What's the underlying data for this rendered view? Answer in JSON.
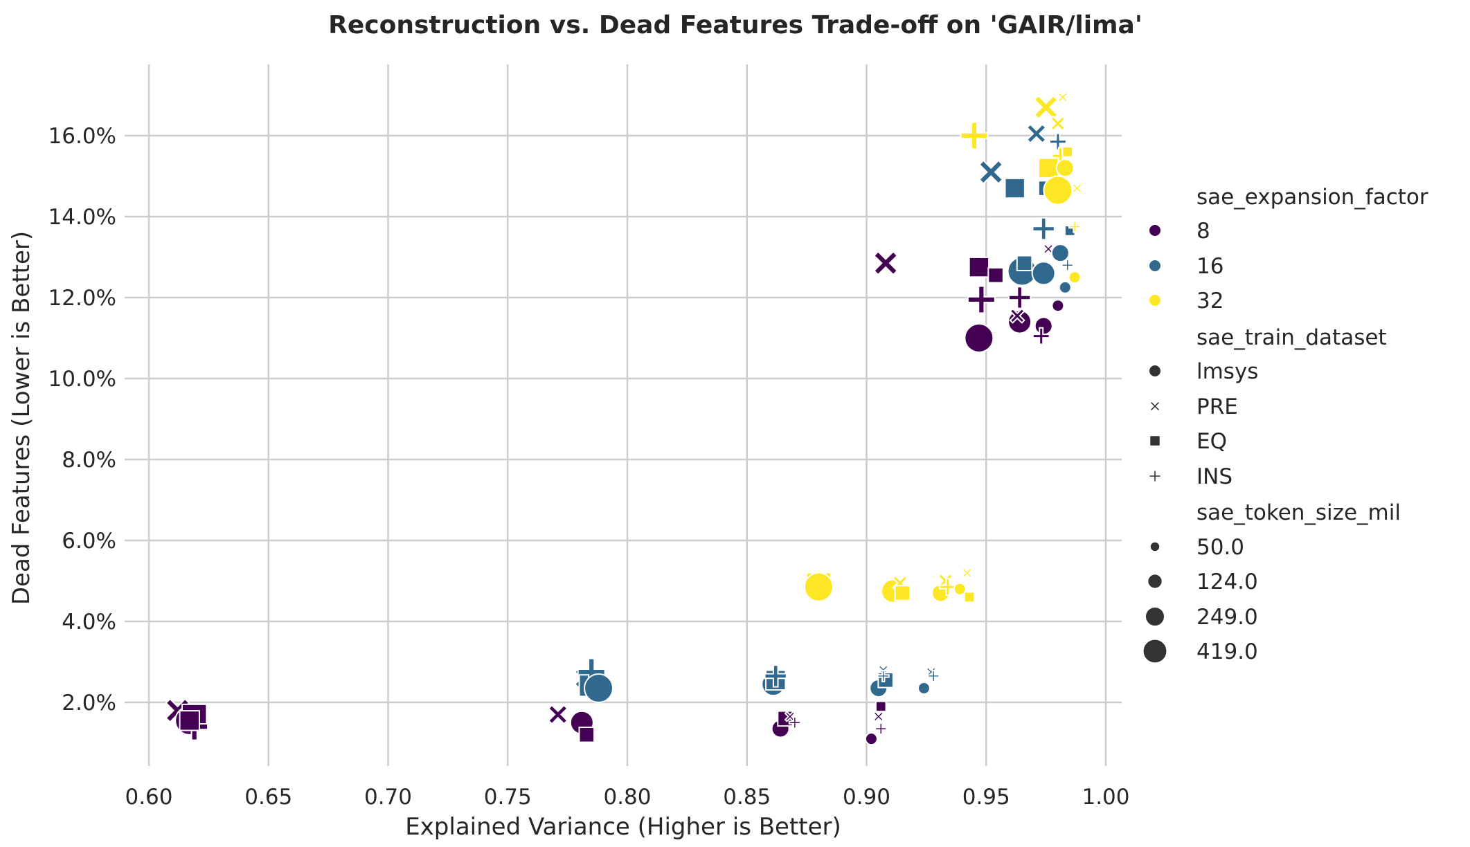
{
  "chart_data": {
    "type": "scatter",
    "title": "Reconstruction vs. Dead Features Trade-off on 'GAIR/lima'",
    "xlabel": "Explained Variance (Higher is Better)",
    "ylabel": "Dead Features (Lower is Better)",
    "xlim": [
      0.6,
      1.0
    ],
    "ylim": [
      0.8,
      17.8
    ],
    "x_ticks": [
      "0.60",
      "0.65",
      "0.70",
      "0.75",
      "0.80",
      "0.85",
      "0.90",
      "0.95",
      "1.00"
    ],
    "y_ticks": [
      "2.0%",
      "4.0%",
      "6.0%",
      "8.0%",
      "10.0%",
      "12.0%",
      "14.0%",
      "16.0%"
    ],
    "grid": true,
    "legend_placement": "right",
    "colors": {
      "8": "#440154",
      "16": "#31688e",
      "32": "#fde725"
    },
    "legend": {
      "hue_title": "sae_expansion_factor",
      "hue_entries": [
        "8",
        "16",
        "32"
      ],
      "style_title": "sae_train_dataset",
      "style_entries": [
        "lmsys",
        "PRE",
        "EQ",
        "INS"
      ],
      "size_title": "sae_token_size_mil",
      "size_entries": [
        "50.0",
        "124.0",
        "249.0",
        "419.0"
      ]
    },
    "points": [
      {
        "x": 0.612,
        "y": 1.8,
        "ef": "8",
        "ds": "PRE",
        "ts": "419.0"
      },
      {
        "x": 0.617,
        "y": 1.55,
        "ef": "8",
        "ds": "lmsys",
        "ts": "419.0"
      },
      {
        "x": 0.619,
        "y": 1.65,
        "ef": "8",
        "ds": "EQ",
        "ts": "419.0"
      },
      {
        "x": 0.619,
        "y": 1.4,
        "ef": "8",
        "ds": "INS",
        "ts": "419.0"
      },
      {
        "x": 0.771,
        "y": 1.7,
        "ef": "8",
        "ds": "PRE",
        "ts": "249.0"
      },
      {
        "x": 0.781,
        "y": 1.5,
        "ef": "8",
        "ds": "lmsys",
        "ts": "249.0"
      },
      {
        "x": 0.783,
        "y": 1.2,
        "ef": "8",
        "ds": "EQ",
        "ts": "124.0"
      },
      {
        "x": 0.864,
        "y": 1.35,
        "ef": "8",
        "ds": "lmsys",
        "ts": "124.0"
      },
      {
        "x": 0.866,
        "y": 1.6,
        "ef": "8",
        "ds": "EQ",
        "ts": "124.0"
      },
      {
        "x": 0.868,
        "y": 1.65,
        "ef": "8",
        "ds": "PRE",
        "ts": "50.0"
      },
      {
        "x": 0.87,
        "y": 1.5,
        "ef": "8",
        "ds": "INS",
        "ts": "50.0"
      },
      {
        "x": 0.902,
        "y": 1.1,
        "ef": "8",
        "ds": "lmsys",
        "ts": "50.0"
      },
      {
        "x": 0.905,
        "y": 1.65,
        "ef": "8",
        "ds": "PRE",
        "ts": "50.0"
      },
      {
        "x": 0.906,
        "y": 1.9,
        "ef": "8",
        "ds": "EQ",
        "ts": "50.0"
      },
      {
        "x": 0.906,
        "y": 1.35,
        "ef": "8",
        "ds": "INS",
        "ts": "50.0"
      },
      {
        "x": 0.947,
        "y": 11.0,
        "ef": "8",
        "ds": "lmsys",
        "ts": "419.0"
      },
      {
        "x": 0.908,
        "y": 12.85,
        "ef": "8",
        "ds": "PRE",
        "ts": "419.0"
      },
      {
        "x": 0.947,
        "y": 12.75,
        "ef": "8",
        "ds": "EQ",
        "ts": "249.0"
      },
      {
        "x": 0.954,
        "y": 12.55,
        "ef": "8",
        "ds": "EQ",
        "ts": "124.0"
      },
      {
        "x": 0.948,
        "y": 11.95,
        "ef": "8",
        "ds": "INS",
        "ts": "419.0"
      },
      {
        "x": 0.964,
        "y": 12.0,
        "ef": "8",
        "ds": "INS",
        "ts": "249.0"
      },
      {
        "x": 0.964,
        "y": 11.4,
        "ef": "8",
        "ds": "lmsys",
        "ts": "249.0"
      },
      {
        "x": 0.963,
        "y": 11.55,
        "ef": "8",
        "ds": "PRE",
        "ts": "124.0"
      },
      {
        "x": 0.974,
        "y": 11.3,
        "ef": "8",
        "ds": "lmsys",
        "ts": "124.0"
      },
      {
        "x": 0.973,
        "y": 11.05,
        "ef": "8",
        "ds": "INS",
        "ts": "124.0"
      },
      {
        "x": 0.98,
        "y": 11.8,
        "ef": "8",
        "ds": "lmsys",
        "ts": "50.0"
      },
      {
        "x": 0.976,
        "y": 13.2,
        "ef": "8",
        "ds": "PRE",
        "ts": "50.0"
      },
      {
        "x": 0.969,
        "y": 12.6,
        "ef": "8",
        "ds": "EQ",
        "ts": "50.0"
      },
      {
        "x": 0.617,
        "y": 1.55,
        "ef": "8",
        "ds": "EQ",
        "ts": "249.0"
      },
      {
        "x": 0.782,
        "y": 2.6,
        "ef": "16",
        "ds": "PRE",
        "ts": "249.0"
      },
      {
        "x": 0.785,
        "y": 2.45,
        "ef": "16",
        "ds": "EQ",
        "ts": "419.0"
      },
      {
        "x": 0.785,
        "y": 2.75,
        "ef": "16",
        "ds": "INS",
        "ts": "419.0"
      },
      {
        "x": 0.788,
        "y": 2.35,
        "ef": "16",
        "ds": "lmsys",
        "ts": "419.0"
      },
      {
        "x": 0.861,
        "y": 2.45,
        "ef": "16",
        "ds": "lmsys",
        "ts": "249.0"
      },
      {
        "x": 0.862,
        "y": 2.55,
        "ef": "16",
        "ds": "EQ",
        "ts": "249.0"
      },
      {
        "x": 0.862,
        "y": 2.65,
        "ef": "16",
        "ds": "INS",
        "ts": "249.0"
      },
      {
        "x": 0.905,
        "y": 2.35,
        "ef": "16",
        "ds": "lmsys",
        "ts": "124.0"
      },
      {
        "x": 0.907,
        "y": 2.8,
        "ef": "16",
        "ds": "PRE",
        "ts": "50.0"
      },
      {
        "x": 0.908,
        "y": 2.55,
        "ef": "16",
        "ds": "EQ",
        "ts": "124.0"
      },
      {
        "x": 0.907,
        "y": 2.65,
        "ef": "16",
        "ds": "INS",
        "ts": "50.0"
      },
      {
        "x": 0.924,
        "y": 2.35,
        "ef": "16",
        "ds": "lmsys",
        "ts": "50.0"
      },
      {
        "x": 0.927,
        "y": 2.75,
        "ef": "16",
        "ds": "PRE",
        "ts": "50.0"
      },
      {
        "x": 0.928,
        "y": 2.65,
        "ef": "16",
        "ds": "INS",
        "ts": "50.0"
      },
      {
        "x": 0.952,
        "y": 15.1,
        "ef": "16",
        "ds": "PRE",
        "ts": "419.0"
      },
      {
        "x": 0.962,
        "y": 14.7,
        "ef": "16",
        "ds": "EQ",
        "ts": "249.0"
      },
      {
        "x": 0.971,
        "y": 16.05,
        "ef": "16",
        "ds": "PRE",
        "ts": "249.0"
      },
      {
        "x": 0.965,
        "y": 12.65,
        "ef": "16",
        "ds": "lmsys",
        "ts": "419.0"
      },
      {
        "x": 0.966,
        "y": 12.85,
        "ef": "16",
        "ds": "EQ",
        "ts": "124.0"
      },
      {
        "x": 0.974,
        "y": 12.6,
        "ef": "16",
        "ds": "lmsys",
        "ts": "249.0"
      },
      {
        "x": 0.974,
        "y": 13.7,
        "ef": "16",
        "ds": "INS",
        "ts": "249.0"
      },
      {
        "x": 0.975,
        "y": 14.7,
        "ef": "16",
        "ds": "EQ",
        "ts": "124.0"
      },
      {
        "x": 0.98,
        "y": 15.85,
        "ef": "16",
        "ds": "INS",
        "ts": "124.0"
      },
      {
        "x": 0.981,
        "y": 13.1,
        "ef": "16",
        "ds": "lmsys",
        "ts": "124.0"
      },
      {
        "x": 0.982,
        "y": 15.3,
        "ef": "16",
        "ds": "EQ",
        "ts": "50.0"
      },
      {
        "x": 0.983,
        "y": 12.25,
        "ef": "16",
        "ds": "lmsys",
        "ts": "50.0"
      },
      {
        "x": 0.984,
        "y": 12.8,
        "ef": "16",
        "ds": "INS",
        "ts": "50.0"
      },
      {
        "x": 0.985,
        "y": 13.65,
        "ef": "16",
        "ds": "EQ",
        "ts": "50.0"
      },
      {
        "x": 0.88,
        "y": 4.9,
        "ef": "32",
        "ds": "EQ",
        "ts": "419.0"
      },
      {
        "x": 0.879,
        "y": 4.75,
        "ef": "32",
        "ds": "INS",
        "ts": "249.0"
      },
      {
        "x": 0.88,
        "y": 4.85,
        "ef": "32",
        "ds": "lmsys",
        "ts": "419.0"
      },
      {
        "x": 0.911,
        "y": 4.75,
        "ef": "32",
        "ds": "lmsys",
        "ts": "249.0"
      },
      {
        "x": 0.914,
        "y": 4.95,
        "ef": "32",
        "ds": "PRE",
        "ts": "124.0"
      },
      {
        "x": 0.915,
        "y": 4.7,
        "ef": "32",
        "ds": "EQ",
        "ts": "124.0"
      },
      {
        "x": 0.931,
        "y": 4.7,
        "ef": "32",
        "ds": "lmsys",
        "ts": "124.0"
      },
      {
        "x": 0.933,
        "y": 5.0,
        "ef": "32",
        "ds": "PRE",
        "ts": "124.0"
      },
      {
        "x": 0.934,
        "y": 4.85,
        "ef": "32",
        "ds": "INS",
        "ts": "124.0"
      },
      {
        "x": 0.939,
        "y": 4.8,
        "ef": "32",
        "ds": "lmsys",
        "ts": "50.0"
      },
      {
        "x": 0.942,
        "y": 5.2,
        "ef": "32",
        "ds": "PRE",
        "ts": "50.0"
      },
      {
        "x": 0.943,
        "y": 4.6,
        "ef": "32",
        "ds": "EQ",
        "ts": "50.0"
      },
      {
        "x": 0.945,
        "y": 16.0,
        "ef": "32",
        "ds": "INS",
        "ts": "419.0"
      },
      {
        "x": 0.975,
        "y": 16.7,
        "ef": "32",
        "ds": "PRE",
        "ts": "419.0"
      },
      {
        "x": 0.976,
        "y": 15.2,
        "ef": "32",
        "ds": "EQ",
        "ts": "249.0"
      },
      {
        "x": 0.98,
        "y": 14.65,
        "ef": "32",
        "ds": "lmsys",
        "ts": "419.0"
      },
      {
        "x": 0.98,
        "y": 16.3,
        "ef": "32",
        "ds": "PRE",
        "ts": "124.0"
      },
      {
        "x": 0.981,
        "y": 15.5,
        "ef": "32",
        "ds": "INS",
        "ts": "124.0"
      },
      {
        "x": 0.982,
        "y": 16.95,
        "ef": "32",
        "ds": "PRE",
        "ts": "50.0"
      },
      {
        "x": 0.983,
        "y": 15.2,
        "ef": "32",
        "ds": "lmsys",
        "ts": "124.0"
      },
      {
        "x": 0.984,
        "y": 15.6,
        "ef": "32",
        "ds": "EQ",
        "ts": "50.0"
      },
      {
        "x": 0.987,
        "y": 12.5,
        "ef": "32",
        "ds": "lmsys",
        "ts": "50.0"
      },
      {
        "x": 0.987,
        "y": 13.75,
        "ef": "32",
        "ds": "INS",
        "ts": "50.0"
      },
      {
        "x": 0.988,
        "y": 14.7,
        "ef": "32",
        "ds": "PRE",
        "ts": "50.0"
      }
    ]
  }
}
